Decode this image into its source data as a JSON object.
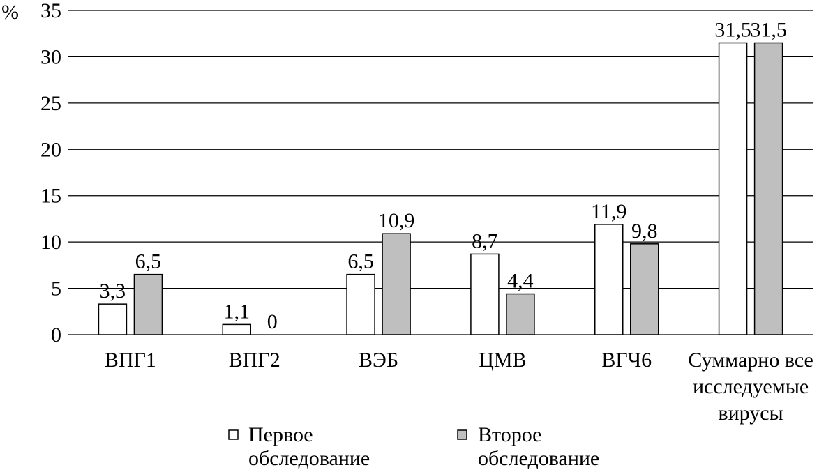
{
  "chart_data": {
    "type": "bar",
    "ylabel": "%",
    "ylim": [
      0,
      35
    ],
    "yticks": [
      "0",
      "5",
      "10",
      "15",
      "20",
      "25",
      "30",
      "35"
    ],
    "categories": [
      [
        "ВПГ1"
      ],
      [
        "ВПГ2"
      ],
      [
        "ВЭБ"
      ],
      [
        "ЦМВ"
      ],
      [
        "ВГЧ6"
      ],
      [
        "Суммарно все",
        "исследуемые",
        "вирусы"
      ]
    ],
    "series": [
      {
        "name_lines": [
          "Первое",
          "обследование"
        ],
        "color": "#ffffff",
        "values": [
          3.3,
          1.1,
          6.5,
          8.7,
          11.9,
          31.5
        ],
        "labels": [
          "3,3",
          "1,1",
          "6,5",
          "8,7",
          "11,9",
          "31,5"
        ]
      },
      {
        "name_lines": [
          "Второе",
          "обследование"
        ],
        "color": "#bfbfbf",
        "values": [
          6.5,
          0,
          10.9,
          4.4,
          9.8,
          31.5
        ],
        "labels": [
          "6,5",
          "0",
          "10,9",
          "4,4",
          "9,8",
          "31,5"
        ]
      }
    ],
    "grid": true,
    "legend": "bottom"
  }
}
